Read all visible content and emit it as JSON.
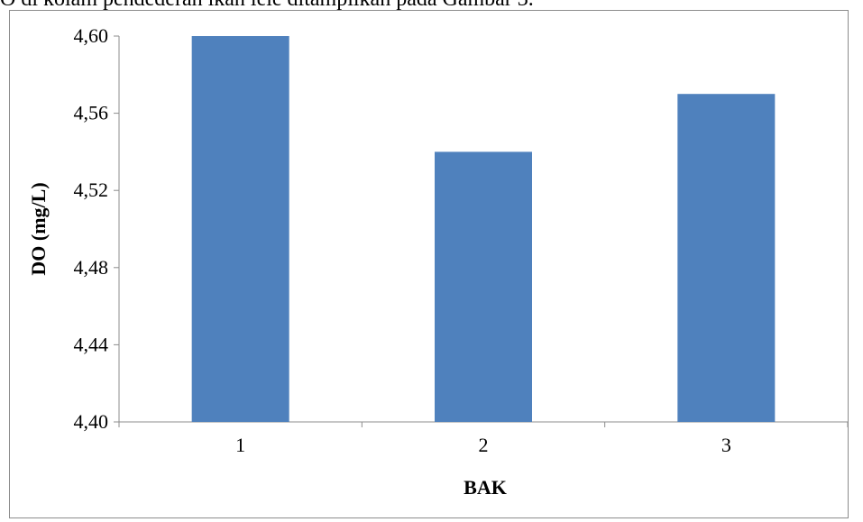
{
  "page": {
    "top_text": "O di kolam pendederan ikan lele ditampilkan pada Gambar 3."
  },
  "chart_data": {
    "type": "bar",
    "categories": [
      "1",
      "2",
      "3"
    ],
    "values": [
      4.6,
      4.54,
      4.57
    ],
    "xlabel": "BAK",
    "ylabel": "DO (mg/L)",
    "ylim": [
      4.4,
      4.6
    ],
    "yticks": [
      "4,40",
      "4,44",
      "4,48",
      "4,52",
      "4,56",
      "4,60"
    ],
    "ytick_values": [
      4.4,
      4.44,
      4.48,
      4.52,
      4.56,
      4.6
    ],
    "grid": false,
    "legend": "none",
    "bar_color": "#4f81bd"
  }
}
